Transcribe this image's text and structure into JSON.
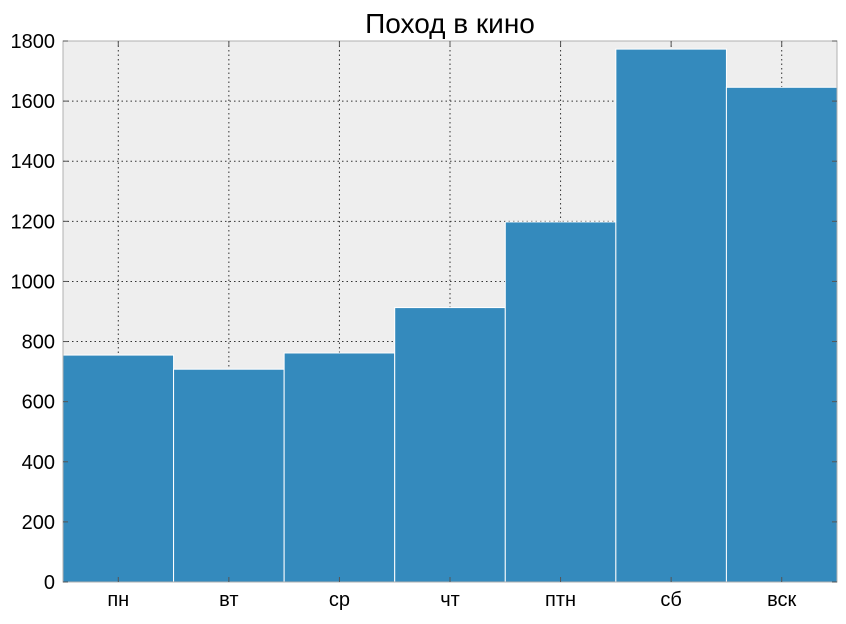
{
  "chart_data": {
    "type": "bar",
    "title": "Поход в кино",
    "xlabel": "",
    "ylabel": "",
    "categories": [
      "пн",
      "вт",
      "ср",
      "чт",
      "птн",
      "сб",
      "вск"
    ],
    "values": [
      755,
      708,
      762,
      913,
      1198,
      1773,
      1646
    ],
    "ylim": [
      0,
      1800
    ],
    "yticks": [
      0,
      200,
      400,
      600,
      800,
      1000,
      1200,
      1400,
      1600,
      1800
    ],
    "grid": true,
    "legend": "none",
    "colors": {
      "bar": "#348abd",
      "plot_background": "#eeeeee"
    }
  }
}
